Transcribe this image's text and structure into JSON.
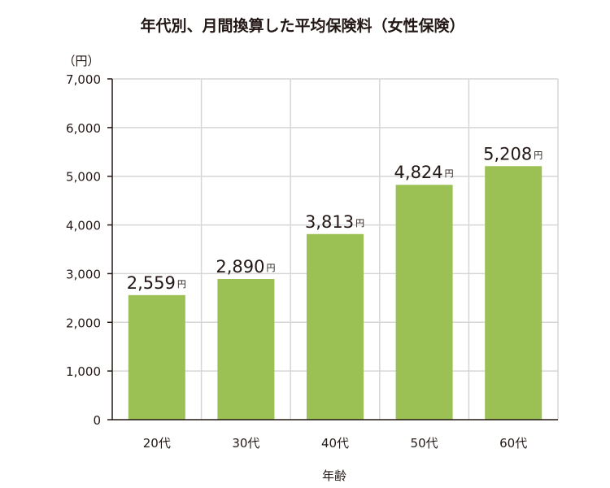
{
  "chart_data": {
    "type": "bar",
    "title": "年代別、月間換算した平均保険料（女性保険）",
    "unit_label": "（円）",
    "xlabel": "年齢",
    "ylabel": "",
    "categories": [
      "20代",
      "30代",
      "40代",
      "50代",
      "60代"
    ],
    "values": [
      2559,
      2890,
      3813,
      4824,
      5208
    ],
    "value_labels": [
      "2,559",
      "2,890",
      "3,813",
      "4,824",
      "5,208"
    ],
    "value_unit": "円",
    "ylim": [
      0,
      7000
    ],
    "yticks": [
      0,
      1000,
      2000,
      3000,
      4000,
      5000,
      6000,
      7000
    ],
    "ytick_labels": [
      "0",
      "1,000",
      "2,000",
      "3,000",
      "4,000",
      "5,000",
      "6,000",
      "7,000"
    ],
    "grid": true,
    "bar_color": "#9bc053"
  }
}
